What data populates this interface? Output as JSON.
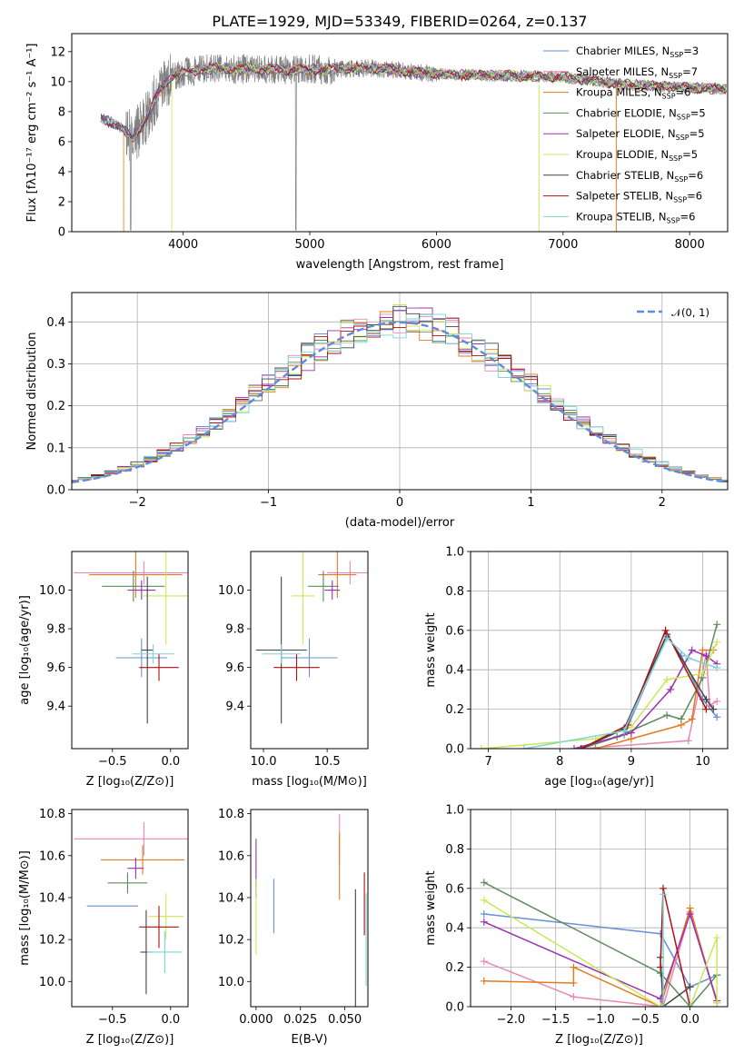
{
  "figure": {
    "title": "PLATE=1929, MJD=53349, FIBERID=0264, z=0.137"
  },
  "colors": {
    "models": [
      "#6a8fdb",
      "#e887b6",
      "#e07b20",
      "#5e8b5e",
      "#9b30b0",
      "#c8e85a",
      "#444444",
      "#b01010",
      "#7fd3d3"
    ],
    "grid": "#b0b0b0",
    "normal_curve": "#5e8bdb",
    "data_spectrum": "#808080"
  },
  "legend_spectrum": [
    {
      "label": "Chabrier MILES, N",
      "sub": "SSP",
      "suffix": "=3"
    },
    {
      "label": "Salpeter MILES, N",
      "sub": "SSP",
      "suffix": "=7"
    },
    {
      "label": "Kroupa MILES, N",
      "sub": "SSP",
      "suffix": "=6"
    },
    {
      "label": "Chabrier ELODIE, N",
      "sub": "SSP",
      "suffix": "=5"
    },
    {
      "label": "Salpeter ELODIE, N",
      "sub": "SSP",
      "suffix": "=5"
    },
    {
      "label": "Kroupa ELODIE, N",
      "sub": "SSP",
      "suffix": "=5"
    },
    {
      "label": "Chabrier STELIB, N",
      "sub": "SSP",
      "suffix": "=6"
    },
    {
      "label": "Salpeter STELIB, N",
      "sub": "SSP",
      "suffix": "=6"
    },
    {
      "label": "Kroupa STELIB, N",
      "sub": "SSP",
      "suffix": "=6"
    }
  ],
  "chart_data": [
    {
      "id": "spectrum",
      "type": "line",
      "xlabel": "wavelength [Angstrom, rest frame]",
      "ylabel": "Flux [fλ10⁻¹⁷ erg cm⁻² s⁻¹ A⁻¹]",
      "xlim": [
        3120,
        8300
      ],
      "ylim": [
        0,
        13.2
      ],
      "xticks": [
        4000,
        5000,
        6000,
        7000,
        8000
      ],
      "yticks": [
        0,
        2,
        4,
        6,
        8,
        10,
        12
      ],
      "grid": false,
      "legend_position": "top-right",
      "continuum": [
        [
          3350,
          7.6
        ],
        [
          3500,
          7.0
        ],
        [
          3600,
          6.2
        ],
        [
          3700,
          7.4
        ],
        [
          3800,
          9.2
        ],
        [
          3900,
          10.3
        ],
        [
          4000,
          10.6
        ],
        [
          4200,
          10.9
        ],
        [
          4500,
          10.8
        ],
        [
          5000,
          10.8
        ],
        [
          5500,
          10.9
        ],
        [
          6000,
          10.5
        ],
        [
          6500,
          10.4
        ],
        [
          7000,
          10.3
        ],
        [
          7500,
          9.8
        ],
        [
          8000,
          9.6
        ],
        [
          8290,
          9.5
        ]
      ]
    },
    {
      "id": "residuals",
      "type": "histogram",
      "xlabel": "(data-model)/error",
      "ylabel": "Normed distribution",
      "xlim": [
        -2.5,
        2.5
      ],
      "ylim": [
        0,
        0.47
      ],
      "xticks": [
        -2,
        -1,
        0,
        1,
        2
      ],
      "yticks": [
        0.0,
        0.1,
        0.2,
        0.3,
        0.4
      ],
      "grid": true,
      "legend_position": "top-right",
      "bin_width": 0.1,
      "legend_label": "𝒩(0, 1)"
    },
    {
      "id": "age-vs-Z",
      "type": "scatter",
      "xlabel": "Z [log₁₀(Z/Z⊙)]",
      "ylabel": "age  [log₁₀(age/yr)]",
      "xlim": [
        -0.85,
        0.15
      ],
      "ylim": [
        9.18,
        10.2
      ],
      "xticks": [
        -0.5,
        0.0
      ],
      "yticks": [
        9.4,
        9.6,
        9.8,
        10.0
      ],
      "grid": false,
      "points": [
        {
          "x": -0.25,
          "y": 9.65,
          "xerr": 0.22,
          "yerr": 0.1
        },
        {
          "x": -0.23,
          "y": 10.09,
          "xerr": 0.6,
          "yerr": 0.06
        },
        {
          "x": -0.3,
          "y": 10.08,
          "xerr": 0.4,
          "yerr": 0.12
        },
        {
          "x": -0.32,
          "y": 10.02,
          "xerr": 0.27,
          "yerr": 0.08
        },
        {
          "x": -0.25,
          "y": 10.0,
          "xerr": 0.12,
          "yerr": 0.05
        },
        {
          "x": -0.04,
          "y": 9.97,
          "xerr": 0.2,
          "yerr": 0.25
        },
        {
          "x": -0.2,
          "y": 9.69,
          "xerr": 0.05,
          "yerr": 0.38
        },
        {
          "x": -0.1,
          "y": 9.6,
          "xerr": 0.17,
          "yerr": 0.07
        },
        {
          "x": -0.15,
          "y": 9.67,
          "xerr": 0.18,
          "yerr": 0.05
        }
      ]
    },
    {
      "id": "age-vs-mass",
      "type": "scatter",
      "xlabel": "mass [log₁₀(M/M⊙)]",
      "ylabel": "",
      "xlim": [
        9.9,
        10.82
      ],
      "ylim": [
        9.18,
        10.2
      ],
      "xticks": [
        10.0,
        10.5
      ],
      "yticks": [
        9.4,
        9.6,
        9.8,
        10.0
      ],
      "grid": false,
      "points": [
        {
          "x": 10.36,
          "y": 9.65,
          "xerr": 0.22,
          "yerr": 0.1
        },
        {
          "x": 10.68,
          "y": 10.09,
          "xerr": 0.18,
          "yerr": 0.06
        },
        {
          "x": 10.58,
          "y": 10.08,
          "xerr": 0.15,
          "yerr": 0.12
        },
        {
          "x": 10.47,
          "y": 10.02,
          "xerr": 0.12,
          "yerr": 0.08
        },
        {
          "x": 10.54,
          "y": 10.0,
          "xerr": 0.06,
          "yerr": 0.05
        },
        {
          "x": 10.31,
          "y": 9.97,
          "xerr": 0.09,
          "yerr": 0.25
        },
        {
          "x": 10.14,
          "y": 9.69,
          "xerr": 0.2,
          "yerr": 0.38
        },
        {
          "x": 10.26,
          "y": 9.6,
          "xerr": 0.18,
          "yerr": 0.07
        },
        {
          "x": 10.14,
          "y": 9.67,
          "xerr": 0.15,
          "yerr": 0.05
        }
      ]
    },
    {
      "id": "mass-weight-vs-age",
      "type": "line",
      "xlabel": "age  [log₁₀(age/yr)]",
      "ylabel": "mass weight",
      "xlim": [
        6.75,
        10.35
      ],
      "ylim": [
        0,
        1.0
      ],
      "xticks": [
        7,
        8,
        9,
        10
      ],
      "yticks": [
        0.0,
        0.2,
        0.4,
        0.6,
        0.8,
        1.0
      ],
      "grid": true,
      "series": [
        {
          "points": [
            [
              8.3,
              0.0
            ],
            [
              8.9,
              0.07
            ],
            [
              9.5,
              0.57
            ],
            [
              9.7,
              0.47
            ],
            [
              10.0,
              0.25
            ],
            [
              10.2,
              0.16
            ]
          ]
        },
        {
          "points": [
            [
              8.3,
              0.0
            ],
            [
              9.8,
              0.04
            ],
            [
              10.05,
              0.48
            ],
            [
              10.1,
              0.22
            ],
            [
              10.2,
              0.24
            ]
          ]
        },
        {
          "points": [
            [
              8.5,
              0.0
            ],
            [
              9.0,
              0.05
            ],
            [
              9.7,
              0.12
            ],
            [
              9.85,
              0.15
            ],
            [
              10.0,
              0.5
            ],
            [
              10.15,
              0.5
            ]
          ]
        },
        {
          "points": [
            [
              8.3,
              0.0
            ],
            [
              8.8,
              0.06
            ],
            [
              9.5,
              0.17
            ],
            [
              9.7,
              0.15
            ],
            [
              10.0,
              0.36
            ],
            [
              10.2,
              0.63
            ]
          ]
        },
        {
          "points": [
            [
              8.2,
              0.0
            ],
            [
              9.0,
              0.08
            ],
            [
              9.55,
              0.3
            ],
            [
              9.85,
              0.5
            ],
            [
              10.05,
              0.47
            ],
            [
              10.2,
              0.43
            ]
          ]
        },
        {
          "points": [
            [
              6.9,
              0.0
            ],
            [
              8.5,
              0.05
            ],
            [
              9.0,
              0.11
            ],
            [
              9.5,
              0.35
            ],
            [
              10.0,
              0.38
            ],
            [
              10.2,
              0.54
            ]
          ]
        },
        {
          "points": [
            [
              8.3,
              0.0
            ],
            [
              8.9,
              0.1
            ],
            [
              9.5,
              0.58
            ],
            [
              10.05,
              0.25
            ],
            [
              10.15,
              0.2
            ]
          ]
        },
        {
          "points": [
            [
              8.3,
              0.0
            ],
            [
              8.95,
              0.12
            ],
            [
              9.48,
              0.6
            ],
            [
              10.05,
              0.2
            ]
          ]
        },
        {
          "points": [
            [
              7.5,
              0.0
            ],
            [
              8.9,
              0.09
            ],
            [
              9.5,
              0.56
            ],
            [
              9.8,
              0.46
            ],
            [
              10.2,
              0.41
            ]
          ]
        }
      ]
    },
    {
      "id": "mass-vs-Z",
      "type": "scatter",
      "xlabel": "Z [log₁₀(Z/Z⊙)]",
      "ylabel": "mass [log₁₀(M/M⊙)]",
      "xlim": [
        -0.85,
        0.15
      ],
      "ylim": [
        9.88,
        10.82
      ],
      "xticks": [
        -0.5,
        0.0
      ],
      "yticks": [
        10.0,
        10.2,
        10.4,
        10.6,
        10.8
      ],
      "grid": false,
      "points": [
        {
          "x": -0.5,
          "y": 10.36,
          "xerr": 0.22,
          "yerr": 0.0
        },
        {
          "x": -0.23,
          "y": 10.68,
          "xerr": 0.6,
          "yerr": 0.08
        },
        {
          "x": -0.24,
          "y": 10.58,
          "xerr": 0.36,
          "yerr": 0.07
        },
        {
          "x": -0.37,
          "y": 10.47,
          "xerr": 0.17,
          "yerr": 0.05
        },
        {
          "x": -0.3,
          "y": 10.54,
          "xerr": 0.07,
          "yerr": 0.05
        },
        {
          "x": -0.04,
          "y": 10.31,
          "xerr": 0.15,
          "yerr": 0.11
        },
        {
          "x": -0.21,
          "y": 10.14,
          "xerr": 0.05,
          "yerr": 0.2
        },
        {
          "x": -0.1,
          "y": 10.26,
          "xerr": 0.17,
          "yerr": 0.1
        },
        {
          "x": -0.05,
          "y": 10.14,
          "xerr": 0.15,
          "yerr": 0.1
        }
      ]
    },
    {
      "id": "mass-vs-EBV",
      "type": "scatter",
      "xlabel": "E(B-V)",
      "ylabel": "",
      "xlim": [
        -0.003,
        0.063
      ],
      "ylim": [
        9.88,
        10.82
      ],
      "xticks": [
        0.0,
        0.025,
        0.05
      ],
      "xticklabels": [
        "0.000",
        "0.025",
        "0.050"
      ],
      "yticks": [
        10.0,
        10.2,
        10.4,
        10.6,
        10.8
      ],
      "grid": false,
      "points": [
        {
          "x": 0.01,
          "y": 10.36,
          "yerr": 0.13
        },
        {
          "x": 0.047,
          "y": 10.68,
          "yerr": 0.12
        },
        {
          "x": 0.047,
          "y": 10.55,
          "yerr": 0.16
        },
        {
          "x": 0.0,
          "y": 10.47,
          "yerr": 0.02
        },
        {
          "x": 0.0,
          "y": 10.54,
          "yerr": 0.14
        },
        {
          "x": 0.0,
          "y": 10.31,
          "yerr": 0.18
        },
        {
          "x": 0.056,
          "y": 10.14,
          "yerr": 0.3
        },
        {
          "x": 0.061,
          "y": 10.37,
          "yerr": 0.15
        },
        {
          "x": 0.062,
          "y": 10.2,
          "yerr": 0.22
        }
      ]
    },
    {
      "id": "mass-weight-vs-Z",
      "type": "line",
      "xlabel": "Z [log₁₀(Z/Z⊙)]",
      "ylabel": "mass weight",
      "xlim": [
        -2.45,
        0.42
      ],
      "ylim": [
        0,
        1.0
      ],
      "xticks": [
        -2.0,
        -1.5,
        -1.0,
        -0.5,
        0.0
      ],
      "yticks": [
        0.0,
        0.2,
        0.4,
        0.6,
        0.8,
        1.0
      ],
      "grid": true,
      "series": [
        {
          "points": [
            [
              -2.3,
              0.47
            ],
            [
              -0.33,
              0.37
            ],
            [
              0.0,
              0.1
            ],
            [
              0.3,
              0.16
            ]
          ]
        },
        {
          "points": [
            [
              -2.3,
              0.23
            ],
            [
              -1.3,
              0.05
            ],
            [
              -0.3,
              0.0
            ],
            [
              0.0,
              0.48
            ],
            [
              0.3,
              0.02
            ]
          ]
        },
        {
          "points": [
            [
              -2.3,
              0.13
            ],
            [
              -1.3,
              0.12
            ],
            [
              -1.3,
              0.2
            ],
            [
              -0.33,
              0.0
            ],
            [
              0.0,
              0.5
            ],
            [
              0.3,
              0.02
            ]
          ]
        },
        {
          "points": [
            [
              -2.3,
              0.63
            ],
            [
              -0.33,
              0.17
            ],
            [
              0.0,
              0.0
            ],
            [
              0.3,
              0.16
            ]
          ]
        },
        {
          "points": [
            [
              -2.3,
              0.43
            ],
            [
              -0.33,
              0.04
            ],
            [
              0.0,
              0.47
            ],
            [
              0.3,
              0.03
            ]
          ]
        },
        {
          "points": [
            [
              -2.3,
              0.54
            ],
            [
              -0.33,
              0.0
            ],
            [
              0.0,
              0.0
            ],
            [
              0.3,
              0.35
            ],
            [
              0.3,
              0.02
            ]
          ]
        },
        {
          "points": [
            [
              -0.33,
              0.25
            ],
            [
              -0.3,
              0.0
            ],
            [
              0.0,
              0.1
            ]
          ]
        },
        {
          "points": [
            [
              -0.33,
              0.2
            ],
            [
              -0.3,
              0.6
            ],
            [
              0.0,
              0.0
            ]
          ]
        },
        {
          "points": [
            [
              -0.3,
              0.57
            ],
            [
              -0.3,
              0.0
            ],
            [
              0.0,
              0.0
            ]
          ]
        }
      ]
    }
  ]
}
